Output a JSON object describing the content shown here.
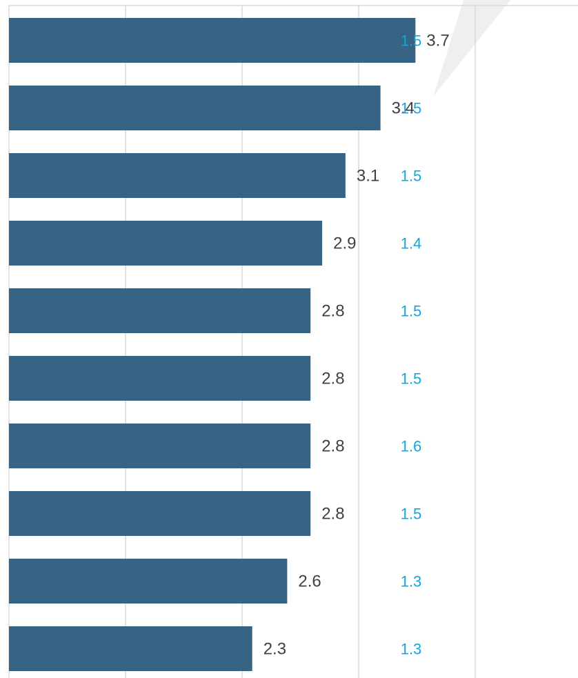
{
  "chart_data": {
    "type": "bar",
    "orientation": "horizontal",
    "xlim": [
      0,
      4
    ],
    "grid": true,
    "bar_color": "#376385",
    "comparison_color": "#0ea7de",
    "values": [
      3.7,
      3.4,
      3.1,
      2.9,
      2.8,
      2.8,
      2.8,
      2.8,
      2.6,
      2.3
    ],
    "value_labels": [
      "3.7",
      "3.4",
      "3.1",
      "2.9",
      "2.8",
      "2.8",
      "2.8",
      "2.8",
      "2.6",
      "2.3"
    ],
    "comparison_values": [
      "1.5",
      "1.5",
      "1.5",
      "1.4",
      "1.5",
      "1.5",
      "1.6",
      "1.5",
      "1.3",
      "1.3"
    ]
  }
}
